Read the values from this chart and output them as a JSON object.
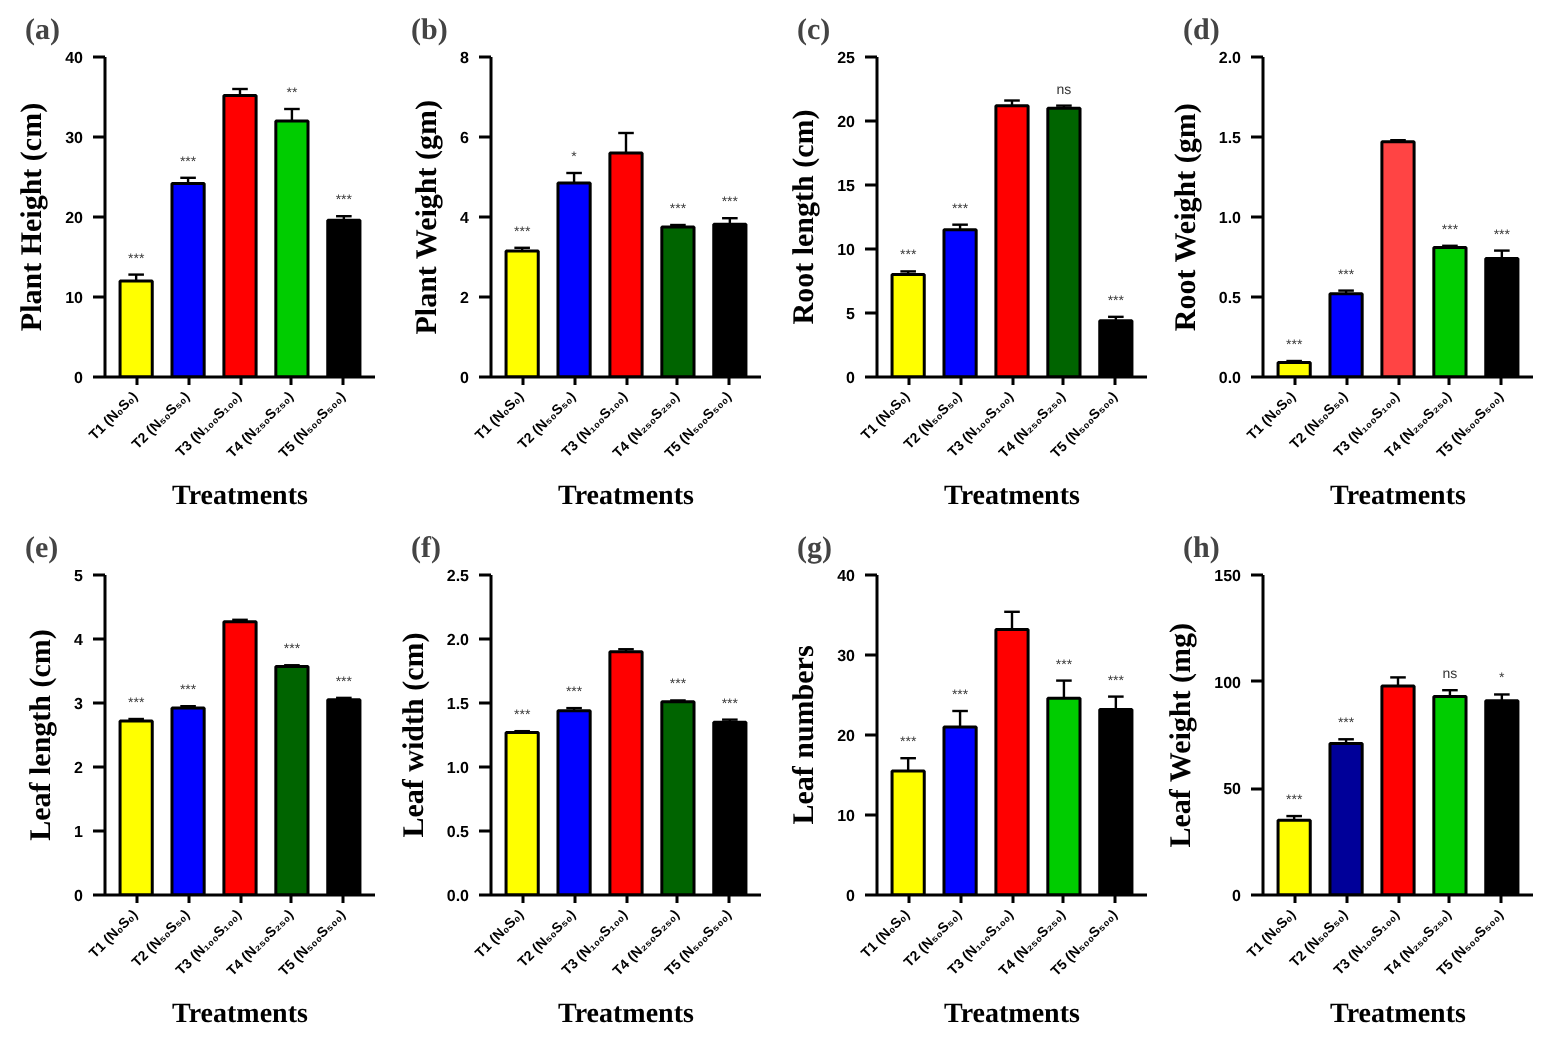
{
  "chart_data": [
    {
      "type": "bar",
      "title": "(a)",
      "ylabel": "Plant Height (cm)",
      "xlabel": "Treatments",
      "categories": [
        "T1 (N₀S₀)",
        "T2 (N₅₀S₅₀)",
        "T3 (N₁₀₀S₁₀₀)",
        "T4 (N₂₅₀S₂₅₀)",
        "T5 (N₅₀₀S₅₀₀)"
      ],
      "values": [
        12,
        24.2,
        35.2,
        32,
        19.6
      ],
      "colors": [
        "#ffff00",
        "#0000ff",
        "#ff0000",
        "#00cc00",
        "#000000"
      ],
      "errors": [
        0.8,
        0.7,
        0.8,
        1.5,
        0.5
      ],
      "ylim": [
        0,
        40
      ],
      "yticks": [
        0,
        10,
        20,
        30,
        40
      ],
      "annotations": [
        {
          "text": "***",
          "x": "T1 (N₀S₀)",
          "y": 12
        },
        {
          "text": "***",
          "x": "T2 (N₅₀S₅₀)",
          "y": 24.2
        },
        {
          "text": "**",
          "x": "T4 (N₂₅₀S₂₅₀)",
          "y": 32
        },
        {
          "text": "***",
          "x": "T5 (N₅₀₀S₅₀₀)",
          "y": 19.6
        }
      ]
    },
    {
      "type": "bar",
      "title": "(b)",
      "ylabel": "Plant Weight (gm)",
      "xlabel": "Treatments",
      "categories": [
        "T1 (N₀S₀)",
        "T2 (N₅₀S₅₀)",
        "T3 (N₁₀₀S₁₀₀)",
        "T4 (N₂₅₀S₂₅₀)",
        "T5 (N₅₀₀S₅₀₀)"
      ],
      "values": [
        3.15,
        4.85,
        5.6,
        3.75,
        3.82
      ],
      "colors": [
        "#ffff00",
        "#0000ff",
        "#ff0000",
        "#006400",
        "#000000"
      ],
      "errors": [
        0.08,
        0.25,
        0.5,
        0.05,
        0.15
      ],
      "ylim": [
        0,
        8
      ],
      "yticks": [
        0,
        2,
        4,
        6,
        8
      ],
      "annotations": [
        {
          "text": "***",
          "x": "T1 (N₀S₀)",
          "y": 3.15
        },
        {
          "text": "*",
          "x": "T2 (N₅₀S₅₀)",
          "y": 4.85
        },
        {
          "text": "***",
          "x": "T4 (N₂₅₀S₂₅₀)",
          "y": 3.75
        },
        {
          "text": "***",
          "x": "T5 (N₅₀₀S₅₀₀)",
          "y": 3.82
        }
      ]
    },
    {
      "type": "bar",
      "title": "(c)",
      "ylabel": "Root length (cm)",
      "xlabel": "Treatments",
      "categories": [
        "T1 (N₀S₀)",
        "T2 (N₅₀S₅₀)",
        "T3 (N₁₀₀S₁₀₀)",
        "T4 (N₂₅₀S₂₅₀)",
        "T5 (N₅₀₀S₅₀₀)"
      ],
      "values": [
        8,
        11.5,
        21.2,
        21,
        4.4
      ],
      "colors": [
        "#ffff00",
        "#0000ff",
        "#ff0000",
        "#006400",
        "#000000"
      ],
      "errors": [
        0.25,
        0.4,
        0.4,
        0.2,
        0.3
      ],
      "ylim": [
        0,
        25
      ],
      "yticks": [
        0,
        5,
        10,
        15,
        20,
        25
      ],
      "annotations": [
        {
          "text": "***",
          "x": "T1 (N₀S₀)",
          "y": 8
        },
        {
          "text": "***",
          "x": "T2 (N₅₀S₅₀)",
          "y": 11.5
        },
        {
          "text": "ns",
          "x": "T4 (N₂₅₀S₂₅₀)",
          "y": 21
        },
        {
          "text": "***",
          "x": "T5 (N₅₀₀S₅₀₀)",
          "y": 4.4
        }
      ]
    },
    {
      "type": "bar",
      "title": "(d)",
      "ylabel": "Root Weight (gm)",
      "xlabel": "Treatments",
      "categories": [
        "T1 (N₀S₀)",
        "T2 (N₅₀S₅₀)",
        "T3 (N₁₀₀S₁₀₀)",
        "T4 (N₂₅₀S₂₅₀)",
        "T5 (N₅₀₀S₅₀₀)"
      ],
      "values": [
        0.09,
        0.52,
        1.47,
        0.81,
        0.74
      ],
      "colors": [
        "#ffff00",
        "#0000ff",
        "#ff4444",
        "#00cc00",
        "#000000"
      ],
      "errors": [
        0.01,
        0.02,
        0.01,
        0.01,
        0.05
      ],
      "ylim": [
        0,
        2
      ],
      "yticks": [
        {
          "value": 0,
          "label": "0.0"
        },
        {
          "value": 0.5,
          "label": "0.5"
        },
        {
          "value": 1,
          "label": "1.0"
        },
        {
          "value": 1.5,
          "label": "1.5"
        },
        {
          "value": 2,
          "label": "2.0"
        }
      ],
      "annotations": [
        {
          "text": "***",
          "x": "T1 (N₀S₀)",
          "y": 0.09
        },
        {
          "text": "***",
          "x": "T2 (N₅₀S₅₀)",
          "y": 0.52
        },
        {
          "text": "***",
          "x": "T4 (N₂₅₀S₂₅₀)",
          "y": 0.81
        },
        {
          "text": "***",
          "x": "T5 (N₅₀₀S₅₀₀)",
          "y": 0.74
        }
      ]
    },
    {
      "type": "bar",
      "title": "(e)",
      "ylabel": "Leaf length (cm)",
      "xlabel": "Treatments",
      "categories": [
        "T1 (N₀S₀)",
        "T2 (N₅₀S₅₀)",
        "T3 (N₁₀₀S₁₀₀)",
        "T4 (N₂₅₀S₂₅₀)",
        "T5 (N₅₀₀S₅₀₀)"
      ],
      "values": [
        2.72,
        2.92,
        4.27,
        3.57,
        3.05
      ],
      "colors": [
        "#ffff00",
        "#0000ff",
        "#ff0000",
        "#006400",
        "#000000"
      ],
      "errors": [
        0.03,
        0.03,
        0.03,
        0.02,
        0.03
      ],
      "ylim": [
        0,
        5
      ],
      "yticks": [
        0,
        1,
        2,
        3,
        4,
        5
      ],
      "annotations": [
        {
          "text": "***",
          "x": "T1 (N₀S₀)",
          "y": 2.72
        },
        {
          "text": "***",
          "x": "T2 (N₅₀S₅₀)",
          "y": 2.92
        },
        {
          "text": "***",
          "x": "T4 (N₂₅₀S₂₅₀)",
          "y": 3.57
        },
        {
          "text": "***",
          "x": "T5 (N₅₀₀S₅₀₀)",
          "y": 3.05
        }
      ]
    },
    {
      "type": "bar",
      "title": "(f)",
      "ylabel": "Leaf width (cm)",
      "xlabel": "Treatments",
      "categories": [
        "T1 (N₀S₀)",
        "T2 (N₅₀S₅₀)",
        "T3 (N₁₀₀S₁₀₀)",
        "T4 (N₂₅₀S₂₅₀)",
        "T5 (N₅₀₀S₅₀₀)"
      ],
      "values": [
        1.27,
        1.44,
        1.9,
        1.51,
        1.35
      ],
      "colors": [
        "#ffff00",
        "#0000ff",
        "#ff0000",
        "#006400",
        "#000000"
      ],
      "errors": [
        0.01,
        0.02,
        0.02,
        0.01,
        0.02
      ],
      "ylim": [
        0,
        2.5
      ],
      "yticks": [
        {
          "value": 0,
          "label": "0.0"
        },
        {
          "value": 0.5,
          "label": "0.5"
        },
        {
          "value": 1,
          "label": "1.0"
        },
        {
          "value": 1.5,
          "label": "1.5"
        },
        {
          "value": 2,
          "label": "2.0"
        },
        {
          "value": 2.5,
          "label": "2.5"
        }
      ],
      "annotations": [
        {
          "text": "***",
          "x": "T1 (N₀S₀)",
          "y": 1.27
        },
        {
          "text": "***",
          "x": "T2 (N₅₀S₅₀)",
          "y": 1.44
        },
        {
          "text": "***",
          "x": "T4 (N₂₅₀S₂₅₀)",
          "y": 1.51
        },
        {
          "text": "***",
          "x": "T5 (N₅₀₀S₅₀₀)",
          "y": 1.35
        }
      ]
    },
    {
      "type": "bar",
      "title": "(g)",
      "ylabel": "Leaf numbers",
      "xlabel": "Treatments",
      "categories": [
        "T1 (N₀S₀)",
        "T2 (N₅₀S₅₀)",
        "T3 (N₁₀₀S₁₀₀)",
        "T4 (N₂₅₀S₂₅₀)",
        "T5 (N₅₀₀S₅₀₀)"
      ],
      "values": [
        15.5,
        21,
        33.2,
        24.6,
        23.2
      ],
      "colors": [
        "#ffff00",
        "#0000ff",
        "#ff0000",
        "#00cc00",
        "#000000"
      ],
      "errors": [
        1.6,
        2,
        2.2,
        2.2,
        1.6
      ],
      "ylim": [
        0,
        40
      ],
      "yticks": [
        0,
        10,
        20,
        30,
        40
      ],
      "annotations": [
        {
          "text": "***",
          "x": "T1 (N₀S₀)",
          "y": 15.5
        },
        {
          "text": "***",
          "x": "T2 (N₅₀S₅₀)",
          "y": 21
        },
        {
          "text": "***",
          "x": "T4 (N₂₅₀S₂₅₀)",
          "y": 24.6
        },
        {
          "text": "***",
          "x": "T5 (N₅₀₀S₅₀₀)",
          "y": 23.2
        }
      ]
    },
    {
      "type": "bar",
      "title": "(h)",
      "ylabel": "Leaf Weight (mg)",
      "xlabel": "Treatments",
      "categories": [
        "T1 (N₀S₀)",
        "T2 (N₅₀S₅₀)",
        "T3 (N₁₀₀S₁₀₀)",
        "T4 (N₂₅₀S₂₅₀)",
        "T5 (N₅₀₀S₅₀₀)"
      ],
      "values": [
        35,
        71,
        98,
        93,
        91
      ],
      "colors": [
        "#ffff00",
        "#000099",
        "#ff0000",
        "#00cc00",
        "#000000"
      ],
      "errors": [
        2,
        2,
        4,
        3,
        3
      ],
      "ylim": [
        0,
        150
      ],
      "yticks": [
        0,
        50,
        100,
        150
      ],
      "annotations": [
        {
          "text": "***",
          "x": "T1 (N₀S₀)",
          "y": 35
        },
        {
          "text": "***",
          "x": "T2 (N₅₀S₅₀)",
          "y": 71
        },
        {
          "text": "ns",
          "x": "T4 (N₂₅₀S₂₅₀)",
          "y": 93
        },
        {
          "text": "*",
          "x": "T5 (N₅₀₀S₅₀₀)",
          "y": 91
        }
      ]
    }
  ]
}
